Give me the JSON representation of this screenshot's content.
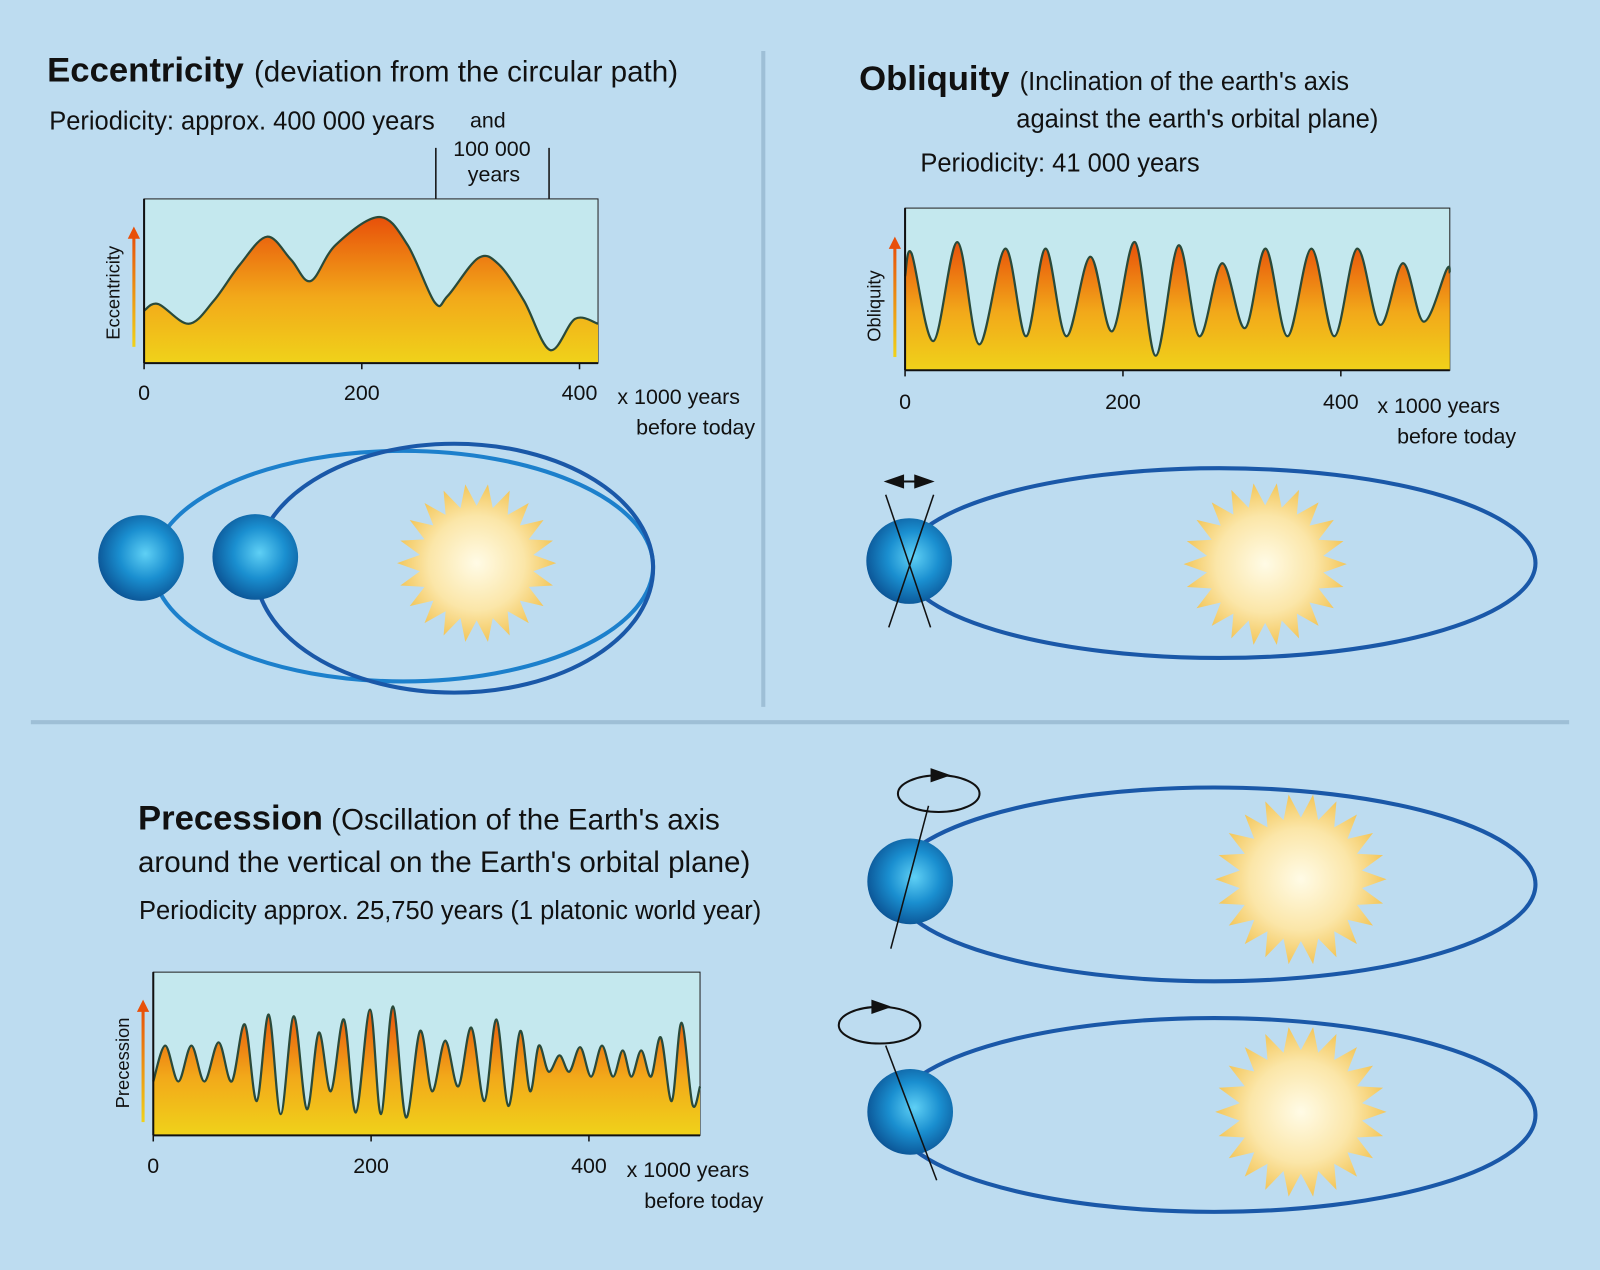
{
  "chart_data": [
    {
      "type": "area",
      "title": "Eccentricity",
      "subtitle": [
        "(deviation from the circular path)"
      ],
      "periodicity": "Periodicity: approx. 400 000 years",
      "annotation": [
        "and",
        "100 000",
        "years"
      ],
      "y_label": "Eccentricity",
      "x_label": [
        "x 1000 years",
        "before today"
      ],
      "xlim": [
        0,
        417
      ],
      "xticks": [
        0,
        200,
        400
      ],
      "ylim": [
        0,
        100
      ],
      "x": [
        0,
        13,
        41,
        64,
        88,
        113,
        135,
        153,
        176,
        216,
        242,
        267,
        279,
        307,
        326,
        349,
        373,
        396,
        417
      ],
      "values": [
        32,
        36,
        24,
        38,
        60,
        77,
        63,
        50,
        72,
        89,
        72,
        37,
        41,
        64,
        60,
        38,
        8,
        27,
        24
      ]
    },
    {
      "type": "area",
      "title": "Obliquity",
      "subtitle": [
        "(Inclination of the earth's axis",
        "against the earth's orbital plane)"
      ],
      "periodicity": "Periodicity: 41 000 years",
      "y_label": "Obliquity",
      "x_label": [
        "x 1000 years",
        "before today"
      ],
      "xlim": [
        0,
        500
      ],
      "xticks": [
        0,
        200,
        400
      ],
      "ylim": [
        0,
        100
      ],
      "x": [
        0,
        6,
        26,
        48,
        68,
        92,
        111,
        129,
        148,
        170,
        190,
        211,
        230,
        251,
        270,
        291,
        312,
        331,
        351,
        373,
        394,
        415,
        436,
        457,
        476,
        497,
        500
      ],
      "values": [
        58,
        72,
        18,
        79,
        16,
        75,
        21,
        75,
        21,
        70,
        24,
        79,
        9,
        77,
        21,
        66,
        26,
        75,
        21,
        75,
        21,
        75,
        28,
        66,
        30,
        62,
        60
      ]
    },
    {
      "type": "area",
      "title": "Precession",
      "subtitle": [
        "(Oscillation of the Earth's axis",
        "around the vertical on the Earth's orbital plane)"
      ],
      "periodicity": "Periodicity approx. 25,750 years (1 platonic world year)",
      "y_label": "Precession",
      "x_label": [
        "x 1000 years",
        "before today"
      ],
      "xlim": [
        0,
        502
      ],
      "xticks": [
        0,
        200,
        400
      ],
      "ylim": [
        0,
        100
      ],
      "x": [
        0,
        11,
        23,
        35,
        47,
        60,
        72,
        84,
        95,
        106,
        117,
        129,
        141,
        152,
        163,
        175,
        186,
        199,
        209,
        220,
        232,
        245,
        256,
        268,
        280,
        292,
        304,
        315,
        326,
        337,
        346,
        354,
        363,
        373,
        382,
        392,
        402,
        412,
        422,
        431,
        439,
        448,
        457,
        466,
        476,
        485,
        495,
        502
      ],
      "values": [
        33,
        55,
        33,
        55,
        33,
        57,
        33,
        68,
        21,
        74,
        13,
        73,
        16,
        63,
        27,
        71,
        14,
        77,
        13,
        79,
        11,
        64,
        27,
        58,
        30,
        66,
        21,
        71,
        18,
        64,
        27,
        55,
        39,
        49,
        39,
        54,
        36,
        55,
        36,
        52,
        36,
        52,
        36,
        60,
        21,
        69,
        19,
        30
      ]
    }
  ]
}
